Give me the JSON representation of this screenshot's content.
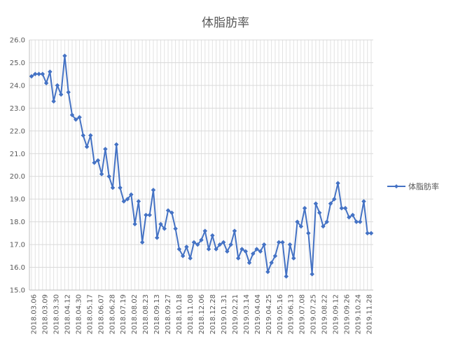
{
  "chart_data": {
    "type": "line",
    "title": "体脂肪率",
    "xlabel": "",
    "ylabel": "",
    "ylim": [
      15.0,
      26.0
    ],
    "yticks": [
      "15.0",
      "16.0",
      "17.0",
      "18.0",
      "19.0",
      "20.0",
      "21.0",
      "22.0",
      "23.0",
      "24.0",
      "25.0",
      "26.0"
    ],
    "grid": true,
    "legend": "right",
    "color": "#4472C4",
    "x_tick_labels": [
      "2018.03.06",
      "2018.03.09",
      "2018.03.30",
      "2018.04.12",
      "2018.04.30",
      "2018.05.17",
      "2018.06.07",
      "2018.06.28",
      "2018.07.19",
      "2018.08.02",
      "2018.08.23",
      "2018.09.13",
      "2018.09.27",
      "2018.10.18",
      "2018.11.08",
      "2018.12.06",
      "2018.12.28",
      "2019.01.31",
      "2019.02.21",
      "2019.03.14",
      "2019.04.04",
      "2019.04.25",
      "2019.05.16",
      "2019.06.13",
      "2019.07.08",
      "2019.07.25",
      "2019.08.22",
      "2019.09.12",
      "2019.09.26",
      "2019.10.24",
      "2019.11.28"
    ],
    "series": [
      {
        "name": "体脂肪率",
        "values": [
          24.4,
          24.5,
          24.5,
          24.5,
          24.1,
          24.6,
          23.3,
          24.0,
          23.6,
          25.3,
          23.7,
          22.7,
          22.5,
          22.6,
          21.8,
          21.3,
          21.8,
          20.6,
          20.7,
          20.1,
          21.2,
          20.0,
          19.5,
          21.4,
          19.5,
          18.9,
          19.0,
          19.2,
          17.9,
          18.9,
          17.1,
          18.3,
          18.3,
          19.4,
          17.3,
          17.9,
          17.7,
          18.5,
          18.4,
          17.7,
          16.8,
          16.5,
          16.9,
          16.4,
          17.1,
          17.0,
          17.2,
          17.6,
          16.8,
          17.4,
          16.8,
          17.0,
          17.1,
          16.7,
          17.0,
          17.6,
          16.4,
          16.8,
          16.7,
          16.2,
          16.6,
          16.8,
          16.7,
          17.0,
          15.8,
          16.2,
          16.5,
          17.1,
          17.1,
          15.6,
          17.0,
          16.4,
          18.0,
          17.8,
          18.6,
          17.5,
          15.7,
          18.8,
          18.4,
          17.8,
          18.0,
          18.8,
          19.0,
          19.7,
          18.6,
          18.6,
          18.2,
          18.3,
          18.0,
          18.0,
          18.9,
          17.5,
          17.5
        ]
      }
    ]
  }
}
